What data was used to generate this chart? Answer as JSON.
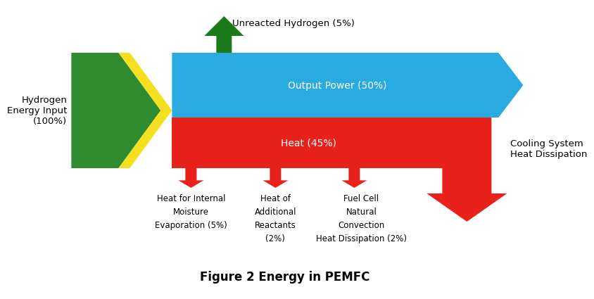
{
  "title": "Figure 2 Energy in PEMFC",
  "title_fontsize": 12,
  "bg_color": "#ffffff",
  "green_color": "#2e8b2e",
  "yellow_color": "#f5e020",
  "blue_color": "#29abe2",
  "red_color": "#e8221a",
  "dark_green_arrow": "#1a7a1a",
  "text_color": "#000000",
  "label_hydrogen": "Hydrogen\nEnergy Input\n(100%)",
  "label_output": "Output Power (50%)",
  "label_heat": "Heat (45%)",
  "label_unreacted": "Unreacted Hydrogen (5%)",
  "label_cooling": "Cooling System\nHeat Dissipation",
  "label_moisture": "Heat for Internal\nMoisture\nEvaporation (5%)",
  "label_reactants": "Heat of\nAdditional\nReactants\n(2%)",
  "label_fuelcell": "Fuel Cell\nNatural\nConvection\nHeat Dissipation (2%)"
}
